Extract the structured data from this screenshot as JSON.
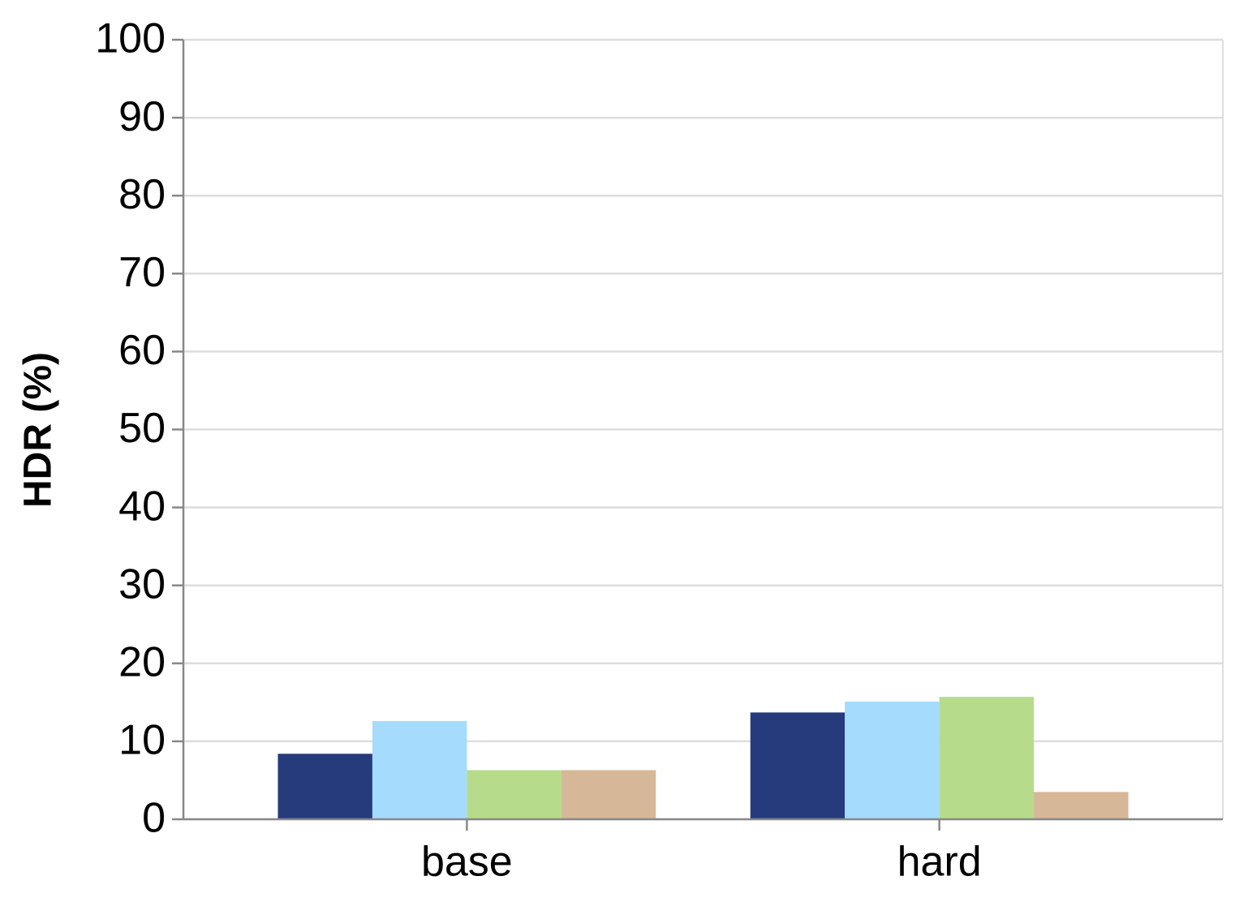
{
  "chart_data": {
    "type": "bar",
    "y_label": "HDR (%)",
    "categories": [
      "base",
      "hard"
    ],
    "series": [
      {
        "color": "#253b7c",
        "values": [
          8.4,
          13.7
        ]
      },
      {
        "color": "#a5dbfc",
        "values": [
          12.6,
          15.1
        ]
      },
      {
        "color": "#b6dc8b",
        "values": [
          6.3,
          15.7
        ]
      },
      {
        "color": "#d6b797",
        "values": [
          6.3,
          3.5
        ]
      }
    ],
    "ylim": [
      0,
      100
    ],
    "yticks": [
      0,
      10,
      20,
      30,
      40,
      50,
      60,
      70,
      80,
      90,
      100
    ],
    "grid": true
  }
}
